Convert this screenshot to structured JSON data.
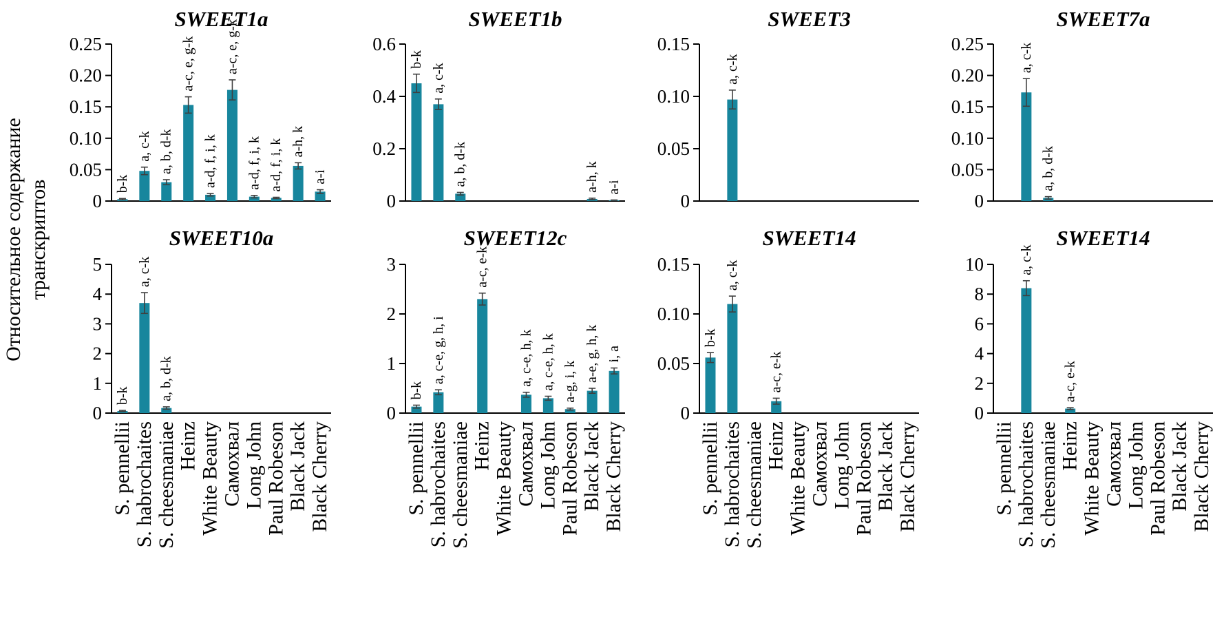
{
  "figure": {
    "ylabel_line1": "Относительное содержание",
    "ylabel_line2": "транскриптов",
    "bar_color": "#17869D",
    "axis_color": "#000000",
    "error_color": "#3f3f3f"
  },
  "categories": [
    "S. pennellii",
    "S. habrochaites",
    "S. cheesmaniae",
    "Heinz",
    "White Beauty",
    "Самохвал",
    "Long John",
    "Paul Robeson",
    "Black Jack",
    "Black Cherry"
  ],
  "chart_data": [
    {
      "type": "bar",
      "title": "SWEET1a",
      "ylim": [
        0,
        0.25
      ],
      "ytick_values": [
        0,
        0.05,
        0.1,
        0.15,
        0.2,
        0.25
      ],
      "yticks": [
        "0",
        "0.05",
        "0.10",
        "0.15",
        "0.20",
        "0.25"
      ],
      "values": [
        0.003,
        0.048,
        0.03,
        0.153,
        0.01,
        0.177,
        0.007,
        0.005,
        0.056,
        0.015
      ],
      "errors": [
        0.001,
        0.006,
        0.004,
        0.013,
        0.002,
        0.016,
        0.002,
        0.001,
        0.005,
        0.003
      ],
      "annotations": [
        "b-k",
        "a, c-k",
        "a, b, d-k",
        "a-c, e, g-k",
        "a-d, f, i, k",
        "a-c, e, g-k",
        "a-d, f, i, k",
        "a-d, f, i, k",
        "a-h, k",
        "a-i"
      ]
    },
    {
      "type": "bar",
      "title": "SWEET1b",
      "ylim": [
        0,
        0.6
      ],
      "ytick_values": [
        0,
        0.2,
        0.4,
        0.6
      ],
      "yticks": [
        "0",
        "0.2",
        "0.4",
        "0.6"
      ],
      "values": [
        0.45,
        0.37,
        0.028,
        0,
        0,
        0,
        0,
        0,
        0.008,
        0.003
      ],
      "errors": [
        0.035,
        0.02,
        0.005,
        0,
        0,
        0,
        0,
        0,
        0.003,
        0.001
      ],
      "annotations": [
        "b-k",
        "a, c-k",
        "a, b, d-k",
        "",
        "",
        "",
        "",
        "",
        "a-h, k",
        "a-i"
      ]
    },
    {
      "type": "bar",
      "title": "SWEET3",
      "ylim": [
        0,
        0.15
      ],
      "ytick_values": [
        0,
        0.05,
        0.1,
        0.15
      ],
      "yticks": [
        "0",
        "0.05",
        "0.10",
        "0.15"
      ],
      "values": [
        0,
        0.097,
        0,
        0,
        0,
        0,
        0,
        0,
        0,
        0
      ],
      "errors": [
        0,
        0.009,
        0,
        0,
        0,
        0,
        0,
        0,
        0,
        0
      ],
      "annotations": [
        "",
        "a, c-k",
        "",
        "",
        "",
        "",
        "",
        "",
        "",
        ""
      ]
    },
    {
      "type": "bar",
      "title": "SWEET7a",
      "ylim": [
        0,
        0.25
      ],
      "ytick_values": [
        0,
        0.05,
        0.1,
        0.15,
        0.2,
        0.25
      ],
      "yticks": [
        "0",
        "0.05",
        "0.10",
        "0.15",
        "0.20",
        "0.25"
      ],
      "values": [
        0,
        0.173,
        0.005,
        0,
        0,
        0,
        0,
        0,
        0,
        0
      ],
      "errors": [
        0,
        0.022,
        0.002,
        0,
        0,
        0,
        0,
        0,
        0,
        0
      ],
      "annotations": [
        "",
        "a, c-k",
        "a, b, d-k",
        "",
        "",
        "",
        "",
        "",
        "",
        ""
      ]
    },
    {
      "type": "bar",
      "title": "SWEET10a",
      "ylim": [
        0,
        5
      ],
      "ytick_values": [
        0,
        1,
        2,
        3,
        4,
        5
      ],
      "yticks": [
        "0",
        "1",
        "2",
        "3",
        "4",
        "5"
      ],
      "values": [
        0.07,
        3.7,
        0.17,
        0,
        0,
        0,
        0,
        0,
        0,
        0
      ],
      "errors": [
        0.02,
        0.35,
        0.04,
        0,
        0,
        0,
        0,
        0,
        0,
        0
      ],
      "annotations": [
        "b-k",
        "a, c-k",
        "a, b, d-k",
        "",
        "",
        "",
        "",
        "",
        "",
        ""
      ]
    },
    {
      "type": "bar",
      "title": "SWEET12c",
      "ylim": [
        0,
        3
      ],
      "ytick_values": [
        0,
        1,
        2,
        3
      ],
      "yticks": [
        "0",
        "1",
        "2",
        "3"
      ],
      "values": [
        0.13,
        0.42,
        0,
        2.3,
        0,
        0.37,
        0.3,
        0.08,
        0.45,
        0.85
      ],
      "errors": [
        0.03,
        0.05,
        0,
        0.12,
        0,
        0.05,
        0.04,
        0.02,
        0.05,
        0.06
      ],
      "annotations": [
        "b-k",
        "a, c-e, g, h, i",
        "",
        "a-c, e-k",
        "",
        "a, c-e, h, k",
        "a, c-e, h, k",
        "a-g, i, k",
        "a-e, g, h, k",
        "i, a"
      ]
    },
    {
      "type": "bar",
      "title": "SWEET14",
      "ylim": [
        0,
        0.15
      ],
      "ytick_values": [
        0,
        0.05,
        0.1,
        0.15
      ],
      "yticks": [
        "0",
        "0.05",
        "0.10",
        "0.15"
      ],
      "values": [
        0.056,
        0.11,
        0,
        0.012,
        0,
        0,
        0,
        0,
        0,
        0
      ],
      "errors": [
        0.005,
        0.008,
        0,
        0.003,
        0,
        0,
        0,
        0,
        0,
        0
      ],
      "annotations": [
        "b-k",
        "a, c-k",
        "",
        "a-c, e-k",
        "",
        "",
        "",
        "",
        "",
        ""
      ]
    },
    {
      "type": "bar",
      "title": "SWEET14",
      "ylim": [
        0,
        10
      ],
      "ytick_values": [
        0,
        2,
        4,
        6,
        8,
        10
      ],
      "yticks": [
        "0",
        "2",
        "4",
        "6",
        "8",
        "10"
      ],
      "values": [
        0,
        8.4,
        0,
        0.3,
        0,
        0,
        0,
        0,
        0,
        0
      ],
      "errors": [
        0,
        0.5,
        0,
        0.06,
        0,
        0,
        0,
        0,
        0,
        0
      ],
      "annotations": [
        "",
        "a, c-k",
        "",
        "a-c, e-k",
        "",
        "",
        "",
        "",
        "",
        ""
      ]
    }
  ]
}
